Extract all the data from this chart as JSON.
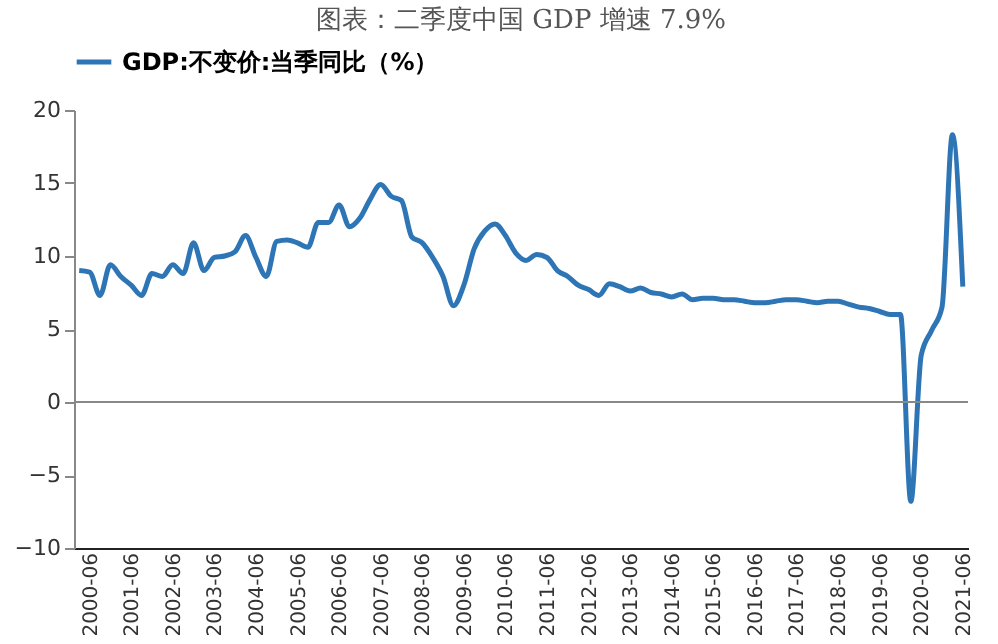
{
  "chart_data": {
    "type": "line",
    "title": "图表：二季度中国 GDP 增速 7.9%",
    "categories": [
      null,
      "2000-06",
      null,
      null,
      null,
      "2001-06",
      null,
      null,
      null,
      "2002-06",
      null,
      null,
      null,
      "2003-06",
      null,
      null,
      null,
      "2004-06",
      null,
      null,
      null,
      "2005-06",
      null,
      null,
      null,
      "2006-06",
      null,
      null,
      null,
      "2007-06",
      null,
      null,
      null,
      "2008-06",
      null,
      null,
      null,
      "2009-06",
      null,
      null,
      null,
      "2010-06",
      null,
      null,
      null,
      "2011-06",
      null,
      null,
      null,
      "2012-06",
      null,
      null,
      null,
      "2013-06",
      null,
      null,
      null,
      "2014-06",
      null,
      null,
      null,
      "2015-06",
      null,
      null,
      null,
      "2016-06",
      null,
      null,
      null,
      "2017-06",
      null,
      null,
      null,
      "2018-06",
      null,
      null,
      null,
      "2019-06",
      null,
      null,
      null,
      "2020-06",
      null,
      null,
      null,
      "2021-06"
    ],
    "series": [
      {
        "name": "GDP:不变价:当季同比（%）",
        "color": "#2e75b6",
        "values": [
          9.0,
          8.9,
          7.3,
          9.4,
          8.6,
          8.0,
          7.3,
          8.8,
          8.6,
          9.4,
          8.8,
          10.9,
          9.0,
          9.9,
          10.0,
          10.3,
          11.4,
          9.9,
          8.6,
          11.0,
          11.1,
          10.9,
          10.6,
          12.3,
          12.3,
          13.5,
          12.0,
          12.6,
          13.9,
          14.9,
          14.1,
          13.8,
          11.3,
          10.9,
          9.9,
          8.6,
          6.6,
          8.0,
          10.5,
          11.7,
          12.2,
          11.4,
          10.2,
          9.7,
          10.1,
          9.9,
          9.0,
          8.6,
          8.0,
          7.7,
          7.3,
          8.1,
          7.9,
          7.6,
          7.8,
          7.5,
          7.4,
          7.2,
          7.4,
          7.0,
          7.1,
          7.1,
          7.0,
          7.0,
          6.9,
          6.8,
          6.8,
          6.9,
          7.0,
          7.0,
          6.9,
          6.8,
          6.9,
          6.9,
          6.7,
          6.5,
          6.4,
          6.2,
          6.0,
          6.0,
          -6.8,
          3.2,
          4.9,
          6.5,
          18.3,
          7.9
        ]
      }
    ],
    "ylim": [
      -10,
      20
    ],
    "yticks": [
      -10,
      -5,
      0,
      5,
      10,
      15,
      20
    ],
    "ref_lines": [
      {
        "axis": "y",
        "value": 0,
        "color": "#888888"
      }
    ],
    "legend": "top",
    "grid": false,
    "marker": "none",
    "line_style": "solid"
  }
}
